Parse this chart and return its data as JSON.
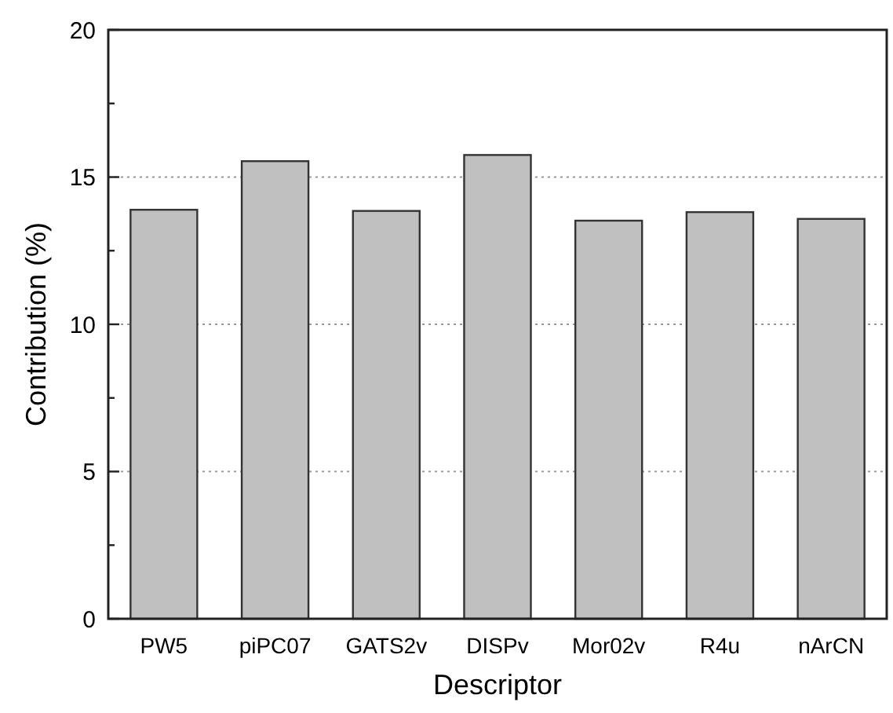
{
  "chart_data": {
    "type": "bar",
    "xlabel": "Descriptor",
    "ylabel": "Contribution (%)",
    "categories": [
      "PW5",
      "piPC07",
      "GATS2v",
      "DISPv",
      "Mor02v",
      "R4u",
      "nArCN"
    ],
    "values": [
      13.89,
      15.54,
      13.85,
      15.75,
      13.52,
      13.81,
      13.58
    ],
    "color": "#c0c0c0",
    "ylim": [
      0,
      20
    ],
    "yticks": [
      0,
      {
        "value": 2.5,
        "label": null
      },
      5,
      {
        "value": 7.5,
        "label": null
      },
      10,
      {
        "value": 12.5,
        "label": null
      },
      15,
      {
        "value": 17.5,
        "label": null
      },
      20
    ],
    "grid": "y"
  }
}
